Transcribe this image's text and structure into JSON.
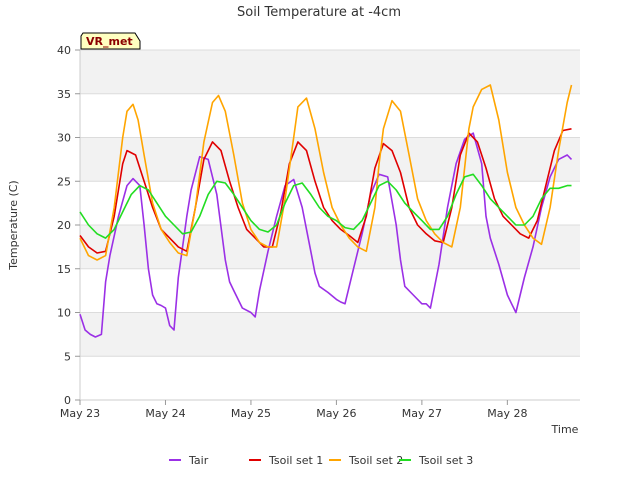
{
  "chart_data": {
    "type": "line",
    "title": "Soil Temperature at -4cm",
    "xlabel": "Time",
    "ylabel": "Temperature (C)",
    "badge": "VR_met",
    "xlim": [
      0,
      5.85
    ],
    "ylim": [
      0,
      40
    ],
    "grid": true,
    "bands": true,
    "legend_position": "bottom",
    "x_ticks": [
      0,
      1,
      2,
      3,
      4,
      5
    ],
    "x_tick_labels": [
      "May 23",
      "May 24",
      "May 25",
      "May 26",
      "May 27",
      "May 28"
    ],
    "y_ticks": [
      0,
      5,
      10,
      15,
      20,
      25,
      30,
      35,
      40
    ],
    "y_tick_labels": [
      "0",
      "5",
      "10",
      "15",
      "20",
      "25",
      "30",
      "35",
      "40"
    ],
    "series": [
      {
        "name": "Tair",
        "color": "#9b30e6",
        "x": [
          0,
          0.06,
          0.12,
          0.18,
          0.25,
          0.3,
          0.35,
          0.45,
          0.55,
          0.62,
          0.7,
          0.75,
          0.8,
          0.85,
          0.9,
          0.95,
          1.0,
          1.05,
          1.1,
          1.15,
          1.2,
          1.25,
          1.3,
          1.4,
          1.5,
          1.6,
          1.7,
          1.75,
          1.8,
          1.9,
          2.0,
          2.05,
          2.1,
          2.2,
          2.3,
          2.4,
          2.5,
          2.6,
          2.7,
          2.75,
          2.8,
          2.9,
          3.0,
          3.05,
          3.1,
          3.2,
          3.3,
          3.4,
          3.5,
          3.6,
          3.7,
          3.75,
          3.8,
          3.9,
          4.0,
          4.05,
          4.1,
          4.2,
          4.3,
          4.4,
          4.5,
          4.6,
          4.7,
          4.75,
          4.8,
          4.9,
          5.0,
          5.05,
          5.1,
          5.2,
          5.3,
          5.4,
          5.5,
          5.6,
          5.7,
          5.75
        ],
        "y": [
          9.8,
          8.0,
          7.5,
          7.2,
          7.5,
          13.5,
          16.5,
          21.0,
          24.5,
          25.3,
          24.5,
          20.0,
          15.0,
          12.0,
          11.0,
          10.8,
          10.5,
          8.5,
          8.0,
          14.0,
          17.5,
          21.0,
          24.0,
          27.8,
          27.5,
          23.5,
          16.0,
          13.5,
          12.5,
          10.5,
          10.0,
          9.5,
          12.5,
          17.0,
          21.0,
          24.5,
          25.2,
          22.0,
          17.0,
          14.5,
          13.0,
          12.3,
          11.5,
          11.2,
          11.0,
          15.0,
          19.0,
          23.5,
          25.8,
          25.5,
          20.0,
          16.0,
          13.0,
          12.0,
          11.0,
          11.0,
          10.5,
          15.5,
          22.0,
          27.0,
          29.8,
          30.5,
          27.0,
          21.0,
          18.5,
          15.5,
          12.0,
          11.0,
          10.0,
          14.0,
          17.5,
          22.0,
          25.5,
          27.5,
          28.0,
          27.5
        ]
      },
      {
        "name": "Tsoil set 1",
        "color": "#e00000",
        "x": [
          0,
          0.1,
          0.2,
          0.3,
          0.4,
          0.5,
          0.55,
          0.65,
          0.75,
          0.85,
          0.95,
          1.05,
          1.15,
          1.25,
          1.35,
          1.45,
          1.55,
          1.65,
          1.75,
          1.85,
          1.95,
          2.05,
          2.15,
          2.25,
          2.35,
          2.45,
          2.55,
          2.65,
          2.75,
          2.85,
          2.95,
          3.05,
          3.15,
          3.25,
          3.35,
          3.45,
          3.55,
          3.65,
          3.75,
          3.85,
          3.95,
          4.05,
          4.15,
          4.25,
          4.35,
          4.45,
          4.55,
          4.65,
          4.75,
          4.85,
          4.95,
          5.05,
          5.15,
          5.25,
          5.35,
          5.45,
          5.55,
          5.65,
          5.75
        ],
        "y": [
          18.8,
          17.5,
          16.8,
          17.0,
          21.0,
          27.0,
          28.5,
          28.0,
          25.0,
          22.0,
          19.5,
          18.5,
          17.5,
          17.0,
          22.0,
          27.5,
          29.5,
          28.5,
          25.0,
          22.0,
          19.5,
          18.5,
          17.5,
          17.5,
          21.5,
          27.0,
          29.5,
          28.5,
          25.0,
          22.0,
          20.5,
          19.5,
          18.8,
          18.0,
          21.0,
          26.5,
          29.3,
          28.5,
          26.0,
          22.0,
          20.0,
          19.0,
          18.2,
          18.0,
          22.0,
          28.0,
          30.5,
          29.5,
          26.5,
          23.0,
          21.0,
          20.0,
          19.0,
          18.5,
          20.5,
          24.5,
          28.5,
          30.8,
          31.0
        ]
      },
      {
        "name": "Tsoil set 2",
        "color": "#ffa500",
        "x": [
          0,
          0.1,
          0.2,
          0.3,
          0.4,
          0.5,
          0.55,
          0.62,
          0.68,
          0.75,
          0.85,
          0.95,
          1.05,
          1.15,
          1.25,
          1.35,
          1.45,
          1.55,
          1.62,
          1.7,
          1.8,
          1.9,
          2.0,
          2.1,
          2.2,
          2.3,
          2.4,
          2.5,
          2.55,
          2.65,
          2.75,
          2.85,
          2.95,
          3.05,
          3.15,
          3.25,
          3.35,
          3.45,
          3.5,
          3.55,
          3.65,
          3.75,
          3.85,
          3.95,
          4.05,
          4.15,
          4.25,
          4.35,
          4.45,
          4.55,
          4.6,
          4.7,
          4.8,
          4.9,
          5.0,
          5.1,
          5.2,
          5.3,
          5.4,
          5.5,
          5.6,
          5.7,
          5.75
        ],
        "y": [
          18.5,
          16.5,
          16.0,
          16.5,
          22.0,
          30.0,
          33.0,
          33.8,
          32.0,
          28.0,
          22.5,
          19.5,
          18.0,
          16.8,
          16.5,
          22.0,
          29.5,
          34.0,
          34.8,
          33.0,
          28.0,
          22.5,
          19.5,
          18.0,
          17.5,
          17.5,
          23.0,
          30.0,
          33.5,
          34.5,
          31.0,
          26.0,
          22.0,
          20.0,
          18.5,
          17.5,
          17.0,
          22.0,
          27.0,
          31.0,
          34.2,
          33.0,
          28.0,
          23.0,
          20.5,
          19.0,
          18.0,
          17.5,
          22.0,
          31.0,
          33.5,
          35.5,
          36.0,
          32.0,
          26.0,
          22.0,
          20.0,
          18.5,
          17.8,
          22.0,
          28.5,
          34.0,
          36.0
        ]
      },
      {
        "name": "Tsoil set 3",
        "color": "#22dd22",
        "x": [
          0,
          0.1,
          0.2,
          0.3,
          0.4,
          0.5,
          0.6,
          0.7,
          0.8,
          0.9,
          1.0,
          1.1,
          1.2,
          1.3,
          1.4,
          1.5,
          1.6,
          1.7,
          1.8,
          1.9,
          2.0,
          2.1,
          2.2,
          2.3,
          2.4,
          2.5,
          2.6,
          2.7,
          2.8,
          2.9,
          3.0,
          3.1,
          3.2,
          3.3,
          3.4,
          3.5,
          3.6,
          3.7,
          3.8,
          3.9,
          4.0,
          4.1,
          4.2,
          4.3,
          4.4,
          4.5,
          4.6,
          4.7,
          4.8,
          4.9,
          5.0,
          5.1,
          5.2,
          5.3,
          5.4,
          5.5,
          5.6,
          5.7,
          5.75
        ],
        "y": [
          21.5,
          20.0,
          19.0,
          18.5,
          19.5,
          21.5,
          23.5,
          24.5,
          24.0,
          22.5,
          21.0,
          20.0,
          19.0,
          19.2,
          21.0,
          23.5,
          25.0,
          24.8,
          23.5,
          22.0,
          20.5,
          19.5,
          19.2,
          20.0,
          22.5,
          24.5,
          24.8,
          23.5,
          22.0,
          21.0,
          20.5,
          19.7,
          19.5,
          20.5,
          22.5,
          24.5,
          25.0,
          24.0,
          22.5,
          21.5,
          20.5,
          19.5,
          19.5,
          21.0,
          23.5,
          25.5,
          25.8,
          24.5,
          23.0,
          22.0,
          21.0,
          20.0,
          20.0,
          21.0,
          23.0,
          24.2,
          24.2,
          24.5,
          24.5
        ]
      }
    ]
  }
}
